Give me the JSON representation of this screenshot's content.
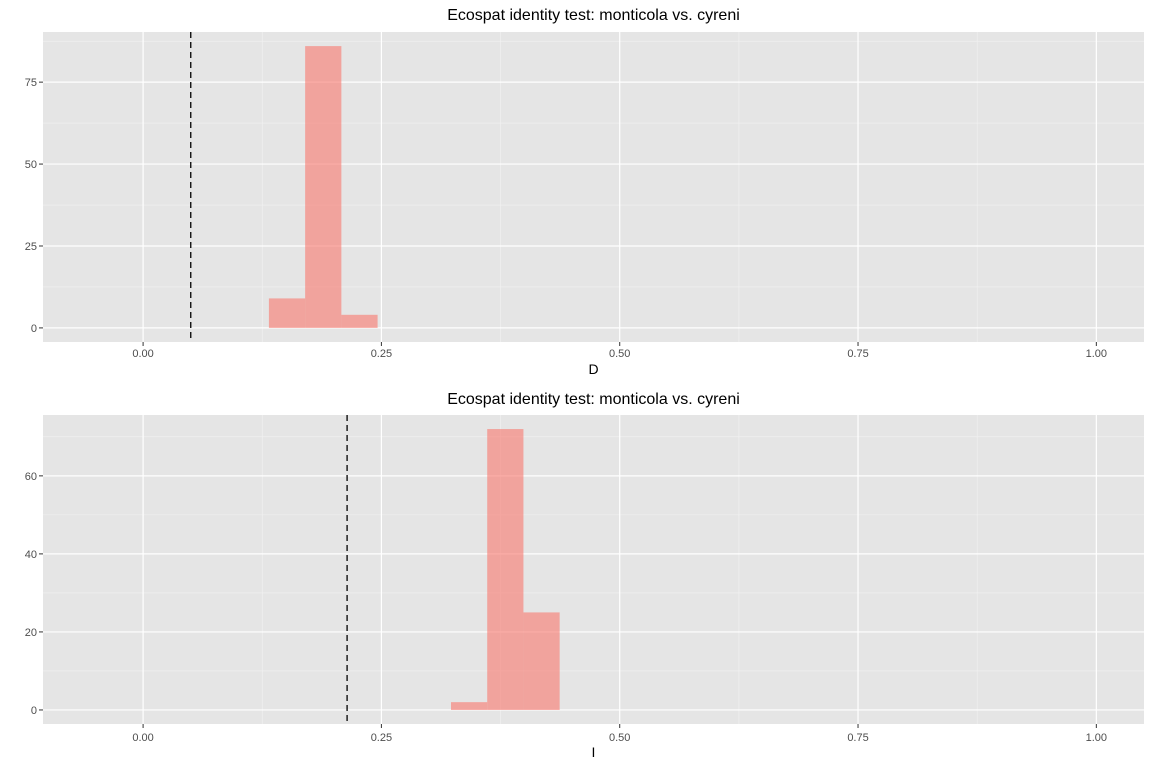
{
  "chart_data": [
    {
      "type": "bar",
      "title": "Ecospat identity test: monticola vs. cyreni",
      "xlabel": "D",
      "ylabel": "",
      "xlim": [
        -0.105,
        1.05
      ],
      "ylim": [
        -4.3,
        90.3
      ],
      "x_ticks": [
        0.0,
        0.25,
        0.5,
        0.75,
        1.0
      ],
      "x_tick_labels": [
        "0.00",
        "0.25",
        "0.50",
        "0.75",
        "1.00"
      ],
      "y_ticks": [
        0,
        25,
        50,
        75
      ],
      "y_tick_labels": [
        "0",
        "25",
        "50",
        "75"
      ],
      "bins": [
        {
          "start": 0.132,
          "end": 0.17,
          "count": 9
        },
        {
          "start": 0.17,
          "end": 0.208,
          "count": 86
        },
        {
          "start": 0.208,
          "end": 0.246,
          "count": 4
        }
      ],
      "observed_value": 0.05,
      "bar_color": "#f8766d",
      "grid": true
    },
    {
      "type": "bar",
      "title": "Ecospat identity test: monticola vs. cyreni",
      "xlabel": "I",
      "ylabel": "",
      "xlim": [
        -0.105,
        1.05
      ],
      "ylim": [
        -3.6,
        75.6
      ],
      "x_ticks": [
        0.0,
        0.25,
        0.5,
        0.75,
        1.0
      ],
      "x_tick_labels": [
        "0.00",
        "0.25",
        "0.50",
        "0.75",
        "1.00"
      ],
      "y_ticks": [
        0,
        20,
        40,
        60
      ],
      "y_tick_labels": [
        "0",
        "20",
        "40",
        "60"
      ],
      "bins": [
        {
          "start": 0.323,
          "end": 0.361,
          "count": 2
        },
        {
          "start": 0.361,
          "end": 0.399,
          "count": 72
        },
        {
          "start": 0.399,
          "end": 0.437,
          "count": 25
        }
      ],
      "observed_value": 0.214,
      "bar_color": "#f8766d",
      "grid": true
    }
  ]
}
